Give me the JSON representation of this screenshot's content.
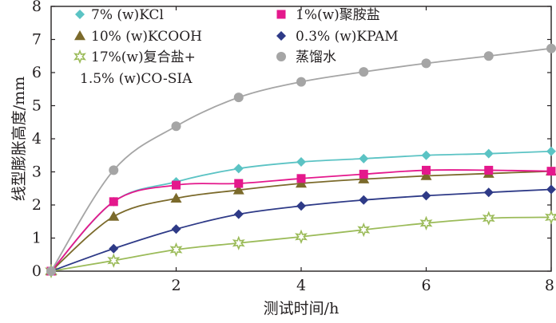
{
  "chart_data": {
    "type": "line",
    "xlabel": "测试时间/h",
    "ylabel": "线型膨胀高度/mm",
    "xlim": [
      0,
      8
    ],
    "ylim": [
      0,
      8
    ],
    "x_ticks": [
      "2",
      "4",
      "6",
      "8"
    ],
    "y_ticks": [
      "0",
      "1",
      "2",
      "3",
      "4",
      "5",
      "6",
      "7",
      "8"
    ],
    "grid": false,
    "legend_position": "top-left",
    "x": [
      0,
      1,
      2,
      3,
      4,
      5,
      6,
      7,
      8
    ],
    "series": [
      {
        "name": "7% (w)KCl",
        "marker": "diamond",
        "color": "#5bc3c4",
        "values": [
          0,
          2.1,
          2.7,
          3.1,
          3.3,
          3.4,
          3.5,
          3.55,
          3.62
        ]
      },
      {
        "name": "10% (w)KCOOH",
        "marker": "triangle",
        "color": "#7b6a2b",
        "values": [
          0,
          1.65,
          2.2,
          2.45,
          2.65,
          2.78,
          2.88,
          2.95,
          3.02
        ]
      },
      {
        "name": "17%(w)复合盐+",
        "name_line2": "1.5% (w)CO-SIA",
        "marker": "star",
        "color": "#9bbb59",
        "values": [
          0,
          0.32,
          0.65,
          0.85,
          1.04,
          1.25,
          1.45,
          1.6,
          1.63
        ]
      },
      {
        "name": "1%(w)聚胺盐",
        "marker": "square",
        "color": "#e4188c",
        "values": [
          0,
          2.1,
          2.6,
          2.65,
          2.8,
          2.93,
          3.05,
          3.05,
          3.02
        ]
      },
      {
        "name": "0.3% (w)KPAM",
        "marker": "diamond",
        "color": "#2e3a87",
        "values": [
          0,
          0.68,
          1.27,
          1.72,
          1.97,
          2.15,
          2.28,
          2.38,
          2.47
        ]
      },
      {
        "name": "蒸馏水",
        "marker": "circle",
        "color": "#a5a5a5",
        "values": [
          0,
          3.05,
          4.38,
          5.25,
          5.72,
          6.02,
          6.28,
          6.5,
          6.73
        ]
      }
    ]
  }
}
